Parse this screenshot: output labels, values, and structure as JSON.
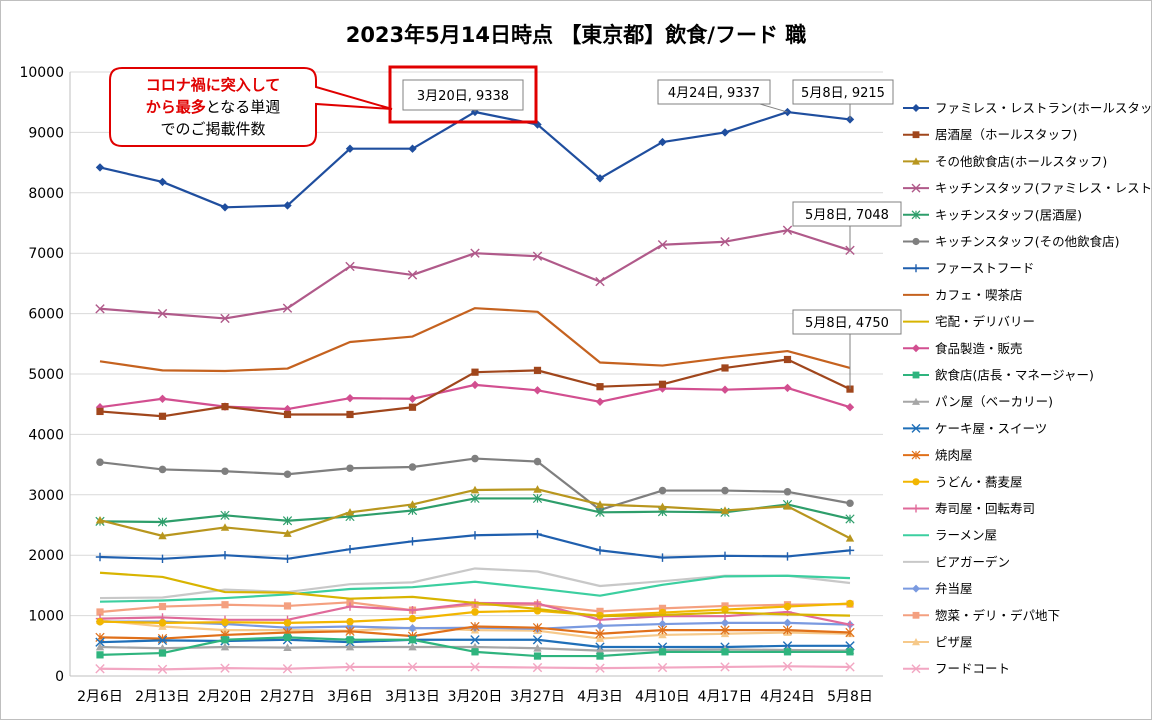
{
  "chart_data": {
    "type": "line",
    "title": "2023年5月14日時点 【東京都】飲食/フード 職",
    "xlabel": "",
    "ylabel": "",
    "categories": [
      "2月6日",
      "2月13日",
      "2月20日",
      "2月27日",
      "3月6日",
      "3月13日",
      "3月20日",
      "3月27日",
      "4月3日",
      "4月10日",
      "4月17日",
      "4月24日",
      "5月8日"
    ],
    "ylim": [
      0,
      10000
    ],
    "yticks": [
      "0",
      "1000",
      "2000",
      "3000",
      "4000",
      "5000",
      "6000",
      "7000",
      "8000",
      "9000",
      "10000"
    ],
    "grid": "horizontal",
    "legend_position": "right",
    "series": [
      {
        "name": "ファミレス・レストラン(ホールスタッフ)",
        "color": "#1f4e9e",
        "marker": "diamond",
        "values": [
          8420,
          8180,
          7760,
          7790,
          8730,
          8730,
          9338,
          9130,
          8240,
          8840,
          9000,
          9337,
          9215
        ]
      },
      {
        "name": "居酒屋（ホールスタッフ)",
        "color": "#a0461c",
        "marker": "square",
        "values": [
          4380,
          4300,
          4460,
          4330,
          4330,
          4450,
          5030,
          5060,
          4790,
          4830,
          5100,
          5240,
          4750
        ]
      },
      {
        "name": "その他飲食店(ホールスタッフ)",
        "color": "#b8961e",
        "marker": "triangle",
        "values": [
          2580,
          2320,
          2460,
          2360,
          2710,
          2840,
          3080,
          3090,
          2840,
          2800,
          2740,
          2810,
          2280
        ]
      },
      {
        "name": "キッチンスタッフ(ファミレス・レストラン)",
        "color": "#b05a8a",
        "marker": "x",
        "values": [
          6080,
          6000,
          5920,
          6090,
          6780,
          6640,
          7000,
          6950,
          6530,
          7140,
          7190,
          7380,
          7048
        ]
      },
      {
        "name": "キッチンスタッフ(居酒屋)",
        "color": "#2e9e6b",
        "marker": "star",
        "values": [
          2560,
          2550,
          2660,
          2570,
          2640,
          2740,
          2940,
          2940,
          2710,
          2720,
          2710,
          2840,
          2600
        ]
      },
      {
        "name": "キッチンスタッフ(その他飲食店)",
        "color": "#7f7f7f",
        "marker": "circle",
        "values": [
          3540,
          3420,
          3390,
          3340,
          3440,
          3460,
          3600,
          3550,
          2750,
          3070,
          3070,
          3050,
          2860
        ]
      },
      {
        "name": "ファーストフード",
        "color": "#1f5fae",
        "marker": "plus",
        "values": [
          1970,
          1940,
          2000,
          1940,
          2100,
          2230,
          2330,
          2350,
          2080,
          1960,
          1990,
          1980,
          2080
        ]
      },
      {
        "name": "カフェ・喫茶店",
        "color": "#c5621f",
        "marker": "none",
        "values": [
          5210,
          5060,
          5050,
          5090,
          5530,
          5620,
          6090,
          6030,
          5190,
          5140,
          5270,
          5380,
          5100
        ]
      },
      {
        "name": "宅配・デリバリー",
        "color": "#d8b400",
        "marker": "none",
        "values": [
          1710,
          1640,
          1390,
          1380,
          1280,
          1310,
          1210,
          1110,
          990,
          1010,
          1050,
          1020,
          1000
        ]
      },
      {
        "name": "食品製造・販売",
        "color": "#d24f90",
        "marker": "diamond",
        "values": [
          4450,
          4590,
          4460,
          4420,
          4600,
          4590,
          4820,
          4730,
          4540,
          4760,
          4740,
          4770,
          4450
        ]
      },
      {
        "name": "飲食店(店長・マネージャー)",
        "color": "#2fb47e",
        "marker": "square",
        "values": [
          350,
          380,
          600,
          640,
          600,
          600,
          400,
          330,
          330,
          400,
          400,
          400,
          400
        ]
      },
      {
        "name": "パン屋（ベーカリー)",
        "color": "#a6a6a6",
        "marker": "triangle",
        "values": [
          480,
          460,
          480,
          470,
          480,
          480,
          480,
          460,
          420,
          430,
          440,
          430,
          420
        ]
      },
      {
        "name": "ケーキ屋・スイーツ",
        "color": "#1f6fb8",
        "marker": "x",
        "values": [
          560,
          590,
          580,
          600,
          560,
          600,
          600,
          600,
          480,
          480,
          480,
          500,
          500
        ]
      },
      {
        "name": "焼肉屋",
        "color": "#e0701a",
        "marker": "star",
        "values": [
          640,
          620,
          680,
          720,
          740,
          660,
          820,
          800,
          700,
          760,
          760,
          760,
          720
        ]
      },
      {
        "name": "うどん・蕎麦屋",
        "color": "#f2b600",
        "marker": "circle",
        "values": [
          900,
          880,
          890,
          880,
          900,
          950,
          1060,
          1080,
          1000,
          1050,
          1100,
          1150,
          1200
        ]
      },
      {
        "name": "寿司屋・回転寿司",
        "color": "#e06a9a",
        "marker": "plus",
        "values": [
          950,
          970,
          930,
          930,
          1150,
          1090,
          1210,
          1200,
          930,
          990,
          990,
          1060,
          850
        ]
      },
      {
        "name": "ラーメン屋",
        "color": "#3ccfa0",
        "marker": "none",
        "values": [
          1230,
          1250,
          1290,
          1350,
          1440,
          1470,
          1560,
          1450,
          1330,
          1510,
          1650,
          1660,
          1620
        ]
      },
      {
        "name": "ビアガーデン",
        "color": "#c8c8c8",
        "marker": "none",
        "values": [
          1290,
          1300,
          1430,
          1390,
          1520,
          1550,
          1780,
          1730,
          1490,
          1570,
          1660,
          1660,
          1540
        ]
      },
      {
        "name": "弁当屋",
        "color": "#7a9ae0",
        "marker": "diamond",
        "values": [
          900,
          900,
          860,
          800,
          820,
          790,
          800,
          780,
          830,
          860,
          880,
          880,
          850
        ]
      },
      {
        "name": "惣菜・デリ・デパ地下",
        "color": "#f4a080",
        "marker": "square",
        "values": [
          1060,
          1150,
          1180,
          1160,
          1220,
          1090,
          1180,
          1180,
          1070,
          1120,
          1160,
          1180,
          1190
        ]
      },
      {
        "name": "ピザ屋",
        "color": "#f6c98a",
        "marker": "triangle",
        "values": [
          920,
          820,
          760,
          760,
          750,
          800,
          760,
          750,
          620,
          680,
          700,
          720,
          700
        ]
      },
      {
        "name": "フードコート",
        "color": "#f2a6c2",
        "marker": "x",
        "values": [
          120,
          110,
          130,
          120,
          150,
          150,
          150,
          140,
          130,
          140,
          150,
          160,
          150
        ]
      }
    ],
    "callouts": [
      {
        "text": "3月20日, 9338",
        "series": 0,
        "index": 6,
        "highlight": true
      },
      {
        "text": "4月24日, 9337",
        "series": 0,
        "index": 11,
        "highlight": false
      },
      {
        "text": "5月8日, 9215",
        "series": 0,
        "index": 12,
        "highlight": false
      },
      {
        "text": "5月8日, 7048",
        "series": 3,
        "index": 12,
        "highlight": false
      },
      {
        "text": "5月8日, 4750",
        "series": 1,
        "index": 12,
        "highlight": false
      }
    ],
    "annotation": {
      "line1": "コロナ禍に突入して",
      "line2_red": "から最多",
      "line2_black": "となる単週",
      "line3": "でのご掲載件数"
    }
  }
}
